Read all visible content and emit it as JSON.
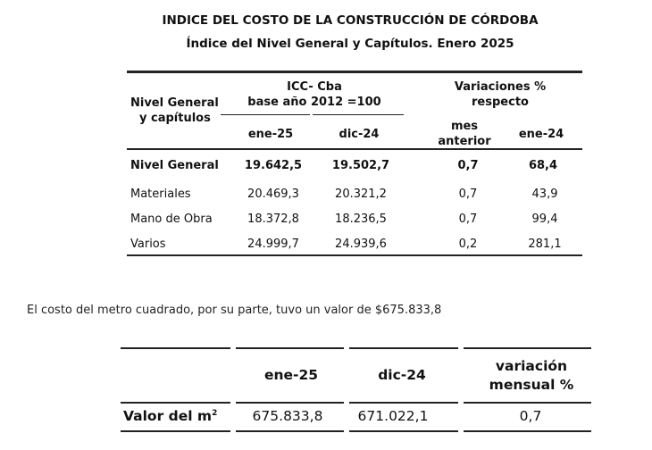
{
  "title": "INDICE DEL COSTO DE LA CONSTRUCCIÓN DE CÓRDOBA",
  "subtitle": "Índice del Nivel General y Capítulos.  Enero 2025",
  "table1": {
    "row_header": [
      "Nivel General",
      "y capítulos"
    ],
    "group1": [
      "ICC- Cba",
      "base año 2012 =100"
    ],
    "group2": [
      "Variaciones %",
      "respecto"
    ],
    "cols": [
      "ene-25",
      "dic-24",
      "mes",
      "anterior",
      "ene-24"
    ],
    "rows": [
      {
        "label": "Nivel General",
        "v1": "19.642,5",
        "v2": "19.502,7",
        "v3": "0,7",
        "v4": "68,4"
      },
      {
        "label": "Materiales",
        "v1": "20.469,3",
        "v2": "20.321,2",
        "v3": "0,7",
        "v4": "43,9"
      },
      {
        "label": "Mano de Obra",
        "v1": "18.372,8",
        "v2": "18.236,5",
        "v3": "0,7",
        "v4": "99,4"
      },
      {
        "label": "Varios",
        "v1": "24.999,7",
        "v2": "24.939,6",
        "v3": "0,2",
        "v4": "281,1"
      }
    ]
  },
  "paragraph": "El costo del metro cuadrado, por su parte, tuvo un valor de $675.833,8",
  "table2": {
    "cols": [
      "ene-25",
      "dic-24",
      "variación",
      "mensual %"
    ],
    "row_label": "Valor del m",
    "row_sup": "2",
    "values": [
      "675.833,8",
      "671.022,1",
      "0,7"
    ]
  }
}
